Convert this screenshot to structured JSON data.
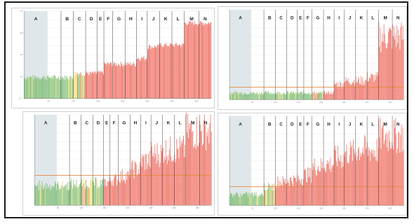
{
  "style": {
    "colors": {
      "green": "#7dbd72",
      "yellow": "#e8df6a",
      "red": "#ef6b5e",
      "threshold": "#e58a3c",
      "shade": "#dfe7ea",
      "divider": "#555555"
    }
  },
  "chart_data": [
    {
      "type": "bar",
      "panel": "top-left",
      "y_scale": "log",
      "shaded_region": "A",
      "bands": [
        "A",
        "B",
        "C",
        "D",
        "E",
        "F",
        "G",
        "H",
        "I",
        "J",
        "K",
        "L",
        "M",
        "N"
      ],
      "band_boundaries": [
        0,
        75,
        100,
        125,
        148,
        162,
        180,
        205,
        228,
        250,
        275,
        300,
        325,
        355,
        380
      ],
      "xlim": [
        0,
        380
      ],
      "ylim": [
        0.1,
        1000
      ],
      "y_ticks": [
        "10⁻¹",
        "10⁰",
        "10¹",
        "10²",
        "10³"
      ],
      "x_ticks": [
        "50",
        "100",
        "150",
        "200",
        "250",
        "300",
        "350"
      ],
      "band_values": [
        1.0,
        1.0,
        1.5,
        1.5,
        1.6,
        4.0,
        4.0,
        4.0,
        7.5,
        25.0,
        30.0,
        30.0,
        300.0,
        300.0
      ],
      "band_colors": [
        "green",
        "green",
        "mixed",
        "red",
        "red",
        "red",
        "red",
        "red",
        "red",
        "red",
        "red",
        "red",
        "red",
        "red"
      ]
    },
    {
      "type": "bar",
      "panel": "top-right",
      "y_scale": "linear",
      "shaded_region": "A",
      "bands": [
        "A",
        "B",
        "C",
        "D",
        "E",
        "F",
        "G",
        "H",
        "I",
        "J",
        "K",
        "L",
        "M",
        "N"
      ],
      "band_boundaries": [
        0,
        75,
        100,
        125,
        148,
        162,
        180,
        205,
        228,
        250,
        275,
        300,
        325,
        355,
        380
      ],
      "xlim": [
        0,
        380
      ],
      "ylim": [
        0,
        10
      ],
      "threshold": 1.4,
      "x_ticks": [
        "50",
        "100",
        "150",
        "200",
        "250",
        "300",
        "350"
      ],
      "band_values": [
        0.8,
        0.8,
        0.8,
        0.8,
        0.8,
        0.8,
        0.8,
        0.8,
        1.8,
        2.2,
        2.2,
        2.6,
        7.4,
        7.4
      ],
      "band_colors": [
        "green",
        "green",
        "green",
        "green",
        "green",
        "green",
        "mixed",
        "red",
        "red",
        "red",
        "red",
        "red",
        "red",
        "red"
      ]
    },
    {
      "type": "bar",
      "panel": "bottom-left",
      "y_scale": "linear",
      "shaded_region": "A",
      "bands": [
        "A",
        "B",
        "C",
        "D",
        "E",
        "F",
        "G",
        "H",
        "I",
        "J",
        "K",
        "L",
        "M",
        "N"
      ],
      "band_boundaries": [
        0,
        75,
        100,
        125,
        148,
        162,
        180,
        205,
        228,
        250,
        275,
        300,
        325,
        355,
        380
      ],
      "xlim": [
        0,
        380
      ],
      "ylim": [
        0,
        10
      ],
      "threshold": 3.3,
      "x_ticks": [
        "50",
        "100",
        "150",
        "200",
        "250",
        "300",
        "350"
      ],
      "band_values": [
        2.3,
        2.5,
        2.6,
        2.6,
        2.7,
        3.0,
        3.4,
        4.2,
        5.2,
        6.0,
        6.4,
        6.5,
        8.6,
        8.6
      ],
      "band_colors": [
        "green",
        "green",
        "mixed",
        "green",
        "red",
        "red",
        "red",
        "red",
        "red",
        "red",
        "red",
        "red",
        "red",
        "red"
      ]
    },
    {
      "type": "bar",
      "panel": "bottom-right",
      "y_scale": "linear",
      "shaded_region": "A",
      "bands": [
        "A",
        "B",
        "C",
        "D",
        "E",
        "F",
        "G",
        "H",
        "I",
        "J",
        "K",
        "L",
        "M",
        "N"
      ],
      "band_boundaries": [
        0,
        75,
        100,
        125,
        148,
        162,
        180,
        205,
        228,
        250,
        275,
        300,
        325,
        355,
        380
      ],
      "xlim": [
        0,
        380
      ],
      "ylim": [
        0,
        10
      ],
      "threshold": 2.1,
      "x_ticks": [
        "50",
        "100",
        "150",
        "200",
        "250",
        "300",
        "350"
      ],
      "band_values": [
        1.3,
        2.2,
        2.8,
        3.0,
        3.2,
        3.6,
        4.6,
        4.9,
        5.6,
        6.2,
        6.6,
        6.5,
        8.2,
        8.2
      ],
      "band_colors": [
        "green",
        "mixed",
        "red",
        "red",
        "red",
        "red",
        "red",
        "red",
        "red",
        "red",
        "red",
        "red",
        "red",
        "red"
      ]
    }
  ]
}
